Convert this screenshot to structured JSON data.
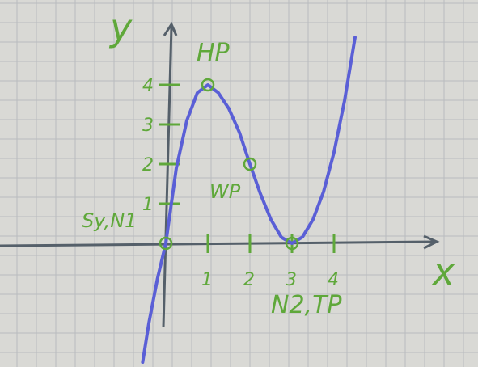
{
  "chart_data": {
    "type": "line",
    "title": "",
    "xlabel": "x",
    "ylabel": "y",
    "xlim": [
      -0.5,
      7.0
    ],
    "ylim": [
      -3.0,
      5.8
    ],
    "x_ticks": [
      "1",
      "2",
      "3",
      "4"
    ],
    "y_ticks": [
      "1",
      "2",
      "3",
      "4"
    ],
    "grid": true,
    "series": [
      {
        "x": [
          -0.55,
          -0.4,
          -0.2,
          0,
          0.25,
          0.5,
          0.75,
          1.0,
          1.25,
          1.5,
          1.75,
          2.0,
          2.25,
          2.5,
          2.75,
          3.0,
          3.25,
          3.5,
          3.75,
          4.0,
          4.25,
          4.5
        ],
        "y": [
          -3.0,
          -2.0,
          -0.9,
          0,
          1.9,
          3.1,
          3.8,
          4.0,
          3.8,
          3.4,
          2.8,
          2.0,
          1.25,
          0.6,
          0.15,
          0,
          0.16,
          0.6,
          1.3,
          2.3,
          3.6,
          5.2
        ]
      }
    ],
    "points": [
      {
        "label": "HP",
        "x": 1,
        "y": 4
      },
      {
        "label": "WP",
        "x": 2,
        "y": 2
      },
      {
        "label": "Sy,N1",
        "x": 0,
        "y": 0
      },
      {
        "label": "N2,TP",
        "x": 3,
        "y": 0
      }
    ],
    "colors": {
      "curve": "#5a5fd6",
      "axes": "#55606a",
      "labels": "#5fa83a"
    }
  }
}
